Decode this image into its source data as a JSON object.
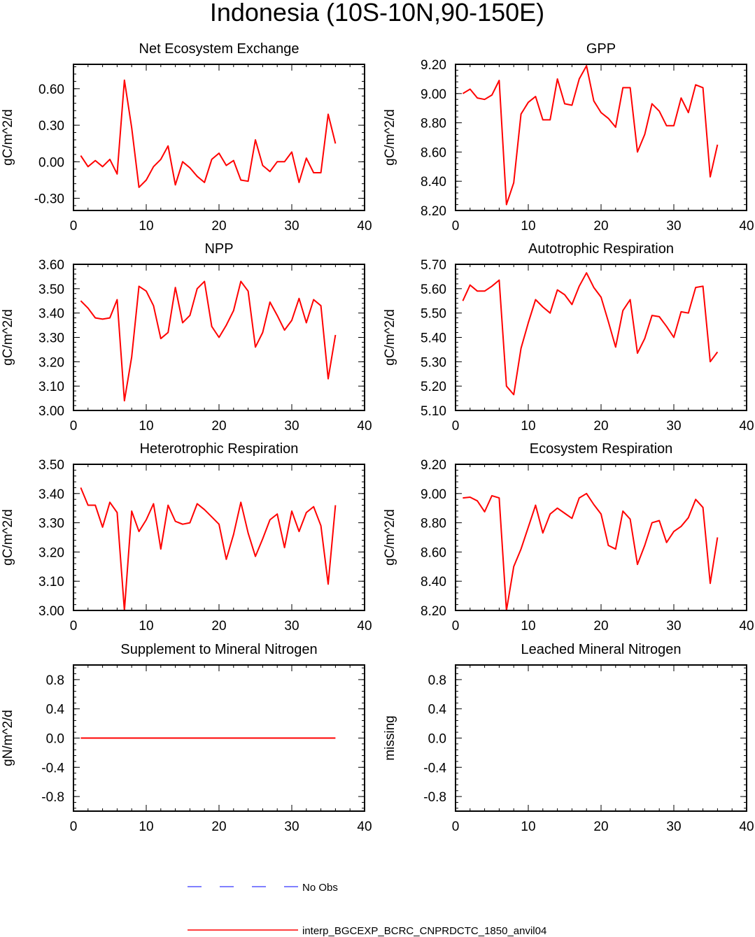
{
  "figure": {
    "title": "Indonesia (10S-10N,90-150E)"
  },
  "legend": {
    "obs_label": "No Obs",
    "obs_color": "#0000ff",
    "model_label": "interp_BGCEXP_BCRC_CNPRDCTC_1850_anvil04",
    "model_color": "#ff0000"
  },
  "chart_data": [
    {
      "type": "line",
      "title": "Net Ecosystem Exchange",
      "ylabel": "gC/m^2/d",
      "xlim": [
        0,
        40
      ],
      "ylim": [
        -0.4,
        0.8
      ],
      "xticks": [
        0,
        10,
        20,
        30,
        40
      ],
      "yticks": [
        -0.3,
        0.0,
        0.3,
        0.6
      ],
      "yticklabels": [
        "-0.30",
        "0.00",
        "0.30",
        "0.60"
      ],
      "x": [
        1,
        2,
        3,
        4,
        5,
        6,
        7,
        8,
        9,
        10,
        11,
        12,
        13,
        14,
        15,
        16,
        17,
        18,
        19,
        20,
        21,
        22,
        23,
        24,
        25,
        26,
        27,
        28,
        29,
        30,
        31,
        32,
        33,
        34,
        35,
        36
      ],
      "series": [
        {
          "values": [
            0.05,
            -0.04,
            0.01,
            -0.04,
            0.02,
            -0.1,
            0.67,
            0.28,
            -0.21,
            -0.15,
            -0.04,
            0.02,
            0.13,
            -0.19,
            0.0,
            -0.05,
            -0.12,
            -0.17,
            0.02,
            0.07,
            -0.03,
            0.01,
            -0.15,
            -0.16,
            0.18,
            -0.03,
            -0.08,
            0.0,
            0.0,
            0.08,
            -0.17,
            0.03,
            -0.09,
            -0.09,
            0.39,
            0.15
          ]
        }
      ]
    },
    {
      "type": "line",
      "title": "GPP",
      "ylabel": "gC/m^2/d",
      "xlim": [
        0,
        40
      ],
      "ylim": [
        8.2,
        9.2
      ],
      "xticks": [
        0,
        10,
        20,
        30,
        40
      ],
      "yticks": [
        8.2,
        8.4,
        8.6,
        8.8,
        9.0,
        9.2
      ],
      "yticklabels": [
        "8.20",
        "8.40",
        "8.60",
        "8.80",
        "9.00",
        "9.20"
      ],
      "x": [
        1,
        2,
        3,
        4,
        5,
        6,
        7,
        8,
        9,
        10,
        11,
        12,
        13,
        14,
        15,
        16,
        17,
        18,
        19,
        20,
        21,
        22,
        23,
        24,
        25,
        26,
        27,
        28,
        29,
        30,
        31,
        32,
        33,
        34,
        35,
        36
      ],
      "series": [
        {
          "values": [
            9.0,
            9.03,
            8.97,
            8.96,
            8.99,
            9.09,
            8.24,
            8.39,
            8.86,
            8.94,
            8.98,
            8.82,
            8.82,
            9.1,
            8.93,
            8.92,
            9.1,
            9.19,
            8.95,
            8.87,
            8.83,
            8.77,
            9.04,
            9.04,
            8.6,
            8.72,
            8.93,
            8.88,
            8.78,
            8.78,
            8.97,
            8.87,
            9.06,
            9.04,
            8.43,
            8.65
          ]
        }
      ]
    },
    {
      "type": "line",
      "title": "NPP",
      "ylabel": "gC/m^2/d",
      "xlim": [
        0,
        40
      ],
      "ylim": [
        3.0,
        3.6
      ],
      "xticks": [
        0,
        10,
        20,
        30,
        40
      ],
      "yticks": [
        3.0,
        3.1,
        3.2,
        3.3,
        3.4,
        3.5,
        3.6
      ],
      "yticklabels": [
        "3.00",
        "3.10",
        "3.20",
        "3.30",
        "3.40",
        "3.50",
        "3.60"
      ],
      "x": [
        1,
        2,
        3,
        4,
        5,
        6,
        7,
        8,
        9,
        10,
        11,
        12,
        13,
        14,
        15,
        16,
        17,
        18,
        19,
        20,
        21,
        22,
        23,
        24,
        25,
        26,
        27,
        28,
        29,
        30,
        31,
        32,
        33,
        34,
        35,
        36
      ],
      "series": [
        {
          "values": [
            3.45,
            3.42,
            3.38,
            3.375,
            3.38,
            3.455,
            3.04,
            3.22,
            3.51,
            3.49,
            3.43,
            3.295,
            3.32,
            3.505,
            3.36,
            3.39,
            3.5,
            3.53,
            3.345,
            3.3,
            3.35,
            3.41,
            3.53,
            3.49,
            3.26,
            3.32,
            3.445,
            3.39,
            3.33,
            3.37,
            3.46,
            3.36,
            3.455,
            3.43,
            3.13,
            3.31
          ]
        }
      ]
    },
    {
      "type": "line",
      "title": "Autotrophic Respiration",
      "ylabel": "gC/m^2/d",
      "xlim": [
        0,
        40
      ],
      "ylim": [
        5.1,
        5.7
      ],
      "xticks": [
        0,
        10,
        20,
        30,
        40
      ],
      "yticks": [
        5.1,
        5.2,
        5.3,
        5.4,
        5.5,
        5.6,
        5.7
      ],
      "yticklabels": [
        "5.10",
        "5.20",
        "5.30",
        "5.40",
        "5.50",
        "5.60",
        "5.70"
      ],
      "x": [
        1,
        2,
        3,
        4,
        5,
        6,
        7,
        8,
        9,
        10,
        11,
        12,
        13,
        14,
        15,
        16,
        17,
        18,
        19,
        20,
        21,
        22,
        23,
        24,
        25,
        26,
        27,
        28,
        29,
        30,
        31,
        32,
        33,
        34,
        35,
        36
      ],
      "series": [
        {
          "values": [
            5.55,
            5.615,
            5.59,
            5.59,
            5.61,
            5.635,
            5.2,
            5.165,
            5.355,
            5.46,
            5.555,
            5.525,
            5.5,
            5.595,
            5.575,
            5.535,
            5.61,
            5.665,
            5.605,
            5.565,
            5.465,
            5.36,
            5.51,
            5.555,
            5.335,
            5.395,
            5.49,
            5.485,
            5.445,
            5.4,
            5.505,
            5.5,
            5.605,
            5.61,
            5.3,
            5.34
          ]
        }
      ]
    },
    {
      "type": "line",
      "title": "Heterotrophic Respiration",
      "ylabel": "gC/m^2/d",
      "xlim": [
        0,
        40
      ],
      "ylim": [
        3.0,
        3.5
      ],
      "xticks": [
        0,
        10,
        20,
        30,
        40
      ],
      "yticks": [
        3.0,
        3.1,
        3.2,
        3.3,
        3.4,
        3.5
      ],
      "yticklabels": [
        "3.00",
        "3.10",
        "3.20",
        "3.30",
        "3.40",
        "3.50"
      ],
      "x": [
        1,
        2,
        3,
        4,
        5,
        6,
        7,
        8,
        9,
        10,
        11,
        12,
        13,
        14,
        15,
        16,
        17,
        18,
        19,
        20,
        21,
        22,
        23,
        24,
        25,
        26,
        27,
        28,
        29,
        30,
        31,
        32,
        33,
        34,
        35,
        36
      ],
      "series": [
        {
          "values": [
            3.42,
            3.36,
            3.36,
            3.285,
            3.37,
            3.335,
            3.0,
            3.34,
            3.27,
            3.31,
            3.365,
            3.21,
            3.36,
            3.305,
            3.295,
            3.3,
            3.365,
            3.345,
            3.32,
            3.295,
            3.175,
            3.26,
            3.37,
            3.265,
            3.185,
            3.245,
            3.31,
            3.33,
            3.215,
            3.34,
            3.27,
            3.335,
            3.355,
            3.29,
            3.09,
            3.36
          ]
        }
      ]
    },
    {
      "type": "line",
      "title": "Ecosystem Respiration",
      "ylabel": "gC/m^2/d",
      "xlim": [
        0,
        40
      ],
      "ylim": [
        8.2,
        9.2
      ],
      "xticks": [
        0,
        10,
        20,
        30,
        40
      ],
      "yticks": [
        8.2,
        8.4,
        8.6,
        8.8,
        9.0,
        9.2
      ],
      "yticklabels": [
        "8.20",
        "8.40",
        "8.60",
        "8.80",
        "9.00",
        "9.20"
      ],
      "x": [
        1,
        2,
        3,
        4,
        5,
        6,
        7,
        8,
        9,
        10,
        11,
        12,
        13,
        14,
        15,
        16,
        17,
        18,
        19,
        20,
        21,
        22,
        23,
        24,
        25,
        26,
        27,
        28,
        29,
        30,
        31,
        32,
        33,
        34,
        35,
        36
      ],
      "series": [
        {
          "values": [
            8.97,
            8.975,
            8.95,
            8.875,
            8.985,
            8.97,
            8.2,
            8.5,
            8.62,
            8.77,
            8.92,
            8.73,
            8.86,
            8.9,
            8.865,
            8.83,
            8.97,
            9.0,
            8.925,
            8.86,
            8.645,
            8.62,
            8.88,
            8.825,
            8.515,
            8.645,
            8.8,
            8.815,
            8.665,
            8.74,
            8.775,
            8.835,
            8.96,
            8.905,
            8.385,
            8.7
          ]
        }
      ]
    },
    {
      "type": "line",
      "title": "Supplement to Mineral Nitrogen",
      "ylabel": "gN/m^2/d",
      "xlim": [
        0,
        40
      ],
      "ylim": [
        -1.0,
        1.0
      ],
      "xticks": [
        0,
        10,
        20,
        30,
        40
      ],
      "yticks": [
        -0.8,
        -0.4,
        0.0,
        0.4,
        0.8
      ],
      "yticklabels": [
        "-0.8",
        "-0.4",
        "0.0",
        "0.4",
        "0.8"
      ],
      "x": [
        1,
        2,
        3,
        4,
        5,
        6,
        7,
        8,
        9,
        10,
        11,
        12,
        13,
        14,
        15,
        16,
        17,
        18,
        19,
        20,
        21,
        22,
        23,
        24,
        25,
        26,
        27,
        28,
        29,
        30,
        31,
        32,
        33,
        34,
        35,
        36
      ],
      "series": [
        {
          "values": [
            0,
            0,
            0,
            0,
            0,
            0,
            0,
            0,
            0,
            0,
            0,
            0,
            0,
            0,
            0,
            0,
            0,
            0,
            0,
            0,
            0,
            0,
            0,
            0,
            0,
            0,
            0,
            0,
            0,
            0,
            0,
            0,
            0,
            0,
            0,
            0
          ]
        }
      ]
    },
    {
      "type": "line",
      "title": "Leached Mineral Nitrogen",
      "ylabel": "missing",
      "xlim": [
        0,
        40
      ],
      "ylim": [
        -1.0,
        1.0
      ],
      "xticks": [
        0,
        10,
        20,
        30,
        40
      ],
      "yticks": [
        -0.8,
        -0.4,
        0.0,
        0.4,
        0.8
      ],
      "yticklabels": [
        "-0.8",
        "-0.4",
        "0.0",
        "0.4",
        "0.8"
      ],
      "x": [],
      "series": []
    }
  ]
}
